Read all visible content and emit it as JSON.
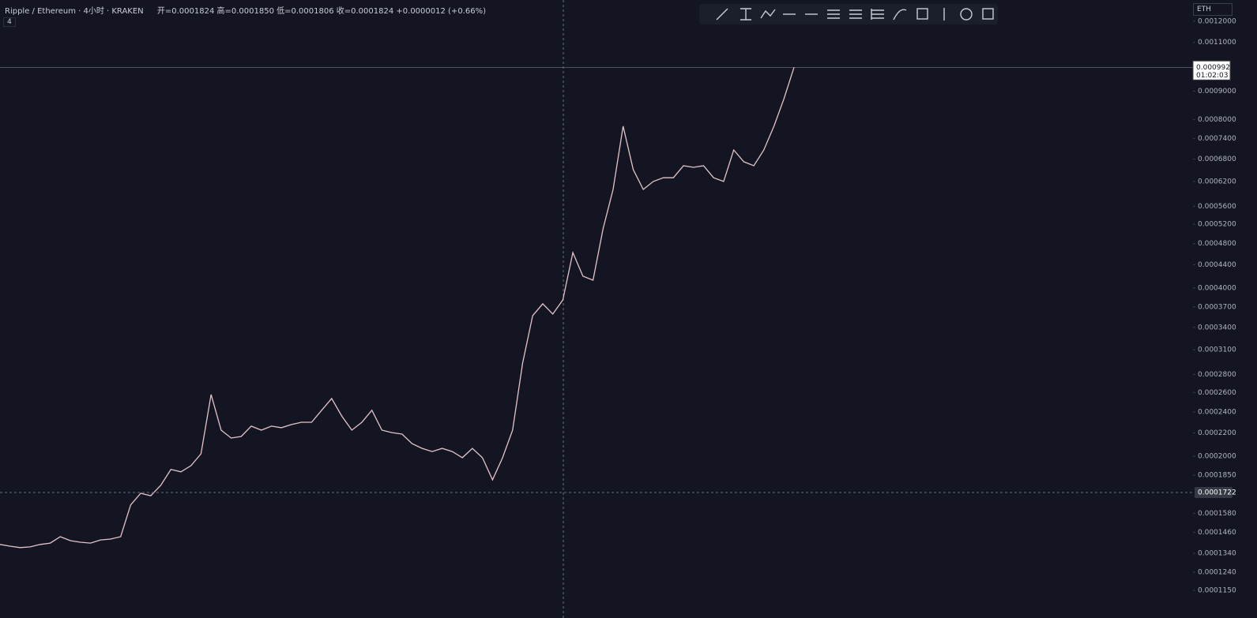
{
  "header": {
    "title": "Ripple / Ethereum · 4小时 · KRAKEN",
    "ohlc": "开=0.0001824 高=0.0001850 低=0.0001806 收=0.0001824 +0.0000012 (+0.66%)",
    "interval_badge": "4"
  },
  "currency_menu": "ETH",
  "chart_data": {
    "type": "line",
    "log_scale": true,
    "ylim": [
      0.0001064,
      0.00131
    ],
    "yticks": [
      {
        "value": 0.000115,
        "label": "0.0001150"
      },
      {
        "value": 0.000124,
        "label": "0.0001240"
      },
      {
        "value": 0.000134,
        "label": "0.0001340"
      },
      {
        "value": 0.000146,
        "label": "0.0001460"
      },
      {
        "value": 0.000158,
        "label": "0.0001580"
      },
      {
        "value": 0.000185,
        "label": "0.0001850"
      },
      {
        "value": 0.0002,
        "label": "0.0002000"
      },
      {
        "value": 0.00022,
        "label": "0.0002200"
      },
      {
        "value": 0.00024,
        "label": "0.0002400"
      },
      {
        "value": 0.00026,
        "label": "0.0002600"
      },
      {
        "value": 0.00028,
        "label": "0.0002800"
      },
      {
        "value": 0.00031,
        "label": "0.0003100"
      },
      {
        "value": 0.00034,
        "label": "0.0003400"
      },
      {
        "value": 0.00037,
        "label": "0.0003700"
      },
      {
        "value": 0.0004,
        "label": "0.0004000"
      },
      {
        "value": 0.00044,
        "label": "0.0004400"
      },
      {
        "value": 0.00048,
        "label": "0.0004800"
      },
      {
        "value": 0.00052,
        "label": "0.0005200"
      },
      {
        "value": 0.00056,
        "label": "0.0005600"
      },
      {
        "value": 0.00062,
        "label": "0.0006200"
      },
      {
        "value": 0.00068,
        "label": "0.0006800"
      },
      {
        "value": 0.00074,
        "label": "0.0007400"
      },
      {
        "value": 0.0008,
        "label": "0.0008000"
      },
      {
        "value": 0.0009,
        "label": "0.0009000"
      },
      {
        "value": 0.0011,
        "label": "0.0011000"
      },
      {
        "value": 0.0012,
        "label": "0.0012000"
      }
    ],
    "series": [
      {
        "color": "#e6c3c9",
        "values": [
          0.000139,
          0.000138,
          0.0001372,
          0.0001376,
          0.000139,
          0.0001398,
          0.0001435,
          0.0001412,
          0.0001403,
          0.0001398,
          0.0001416,
          0.0001421,
          0.0001435,
          0.0001636,
          0.0001716,
          0.0001699,
          0.0001774,
          0.0001893,
          0.0001875,
          0.0001923,
          0.0002019,
          0.0002578,
          0.0002226,
          0.0002155,
          0.0002169,
          0.0002263,
          0.0002226,
          0.0002263,
          0.0002249,
          0.0002278,
          0.00023,
          0.00023,
          0.0002416,
          0.0002536,
          0.000236,
          0.0002226,
          0.00023,
          0.0002416,
          0.0002226,
          0.0002204,
          0.000219,
          0.0002106,
          0.0002065,
          0.0002038,
          0.0002065,
          0.0002038,
          0.0001987,
          0.0002065,
          0.0001987,
          0.0001814,
          0.0001987,
          0.0002226,
          0.0002935,
          0.0003568,
          0.0003747,
          0.0003592,
          0.0003807,
          0.0004627,
          0.0004199,
          0.000413,
          0.0005103,
          0.0006002,
          0.0007787,
          0.0006513,
          0.0006002,
          0.0006202,
          0.0006298,
          0.0006298,
          0.0006618,
          0.0006575,
          0.0006618,
          0.0006298,
          0.0006202,
          0.0007063,
          0.0006727,
          0.0006618,
          0.0007063,
          0.0007787,
          0.0008725,
          0.0009928
        ]
      }
    ],
    "last_price": {
      "value": 0.0009928,
      "label": "0.0009928"
    },
    "countdown": "01:02:03",
    "crosshair_price": {
      "value": 0.0001722,
      "label": "0.0001722"
    }
  }
}
